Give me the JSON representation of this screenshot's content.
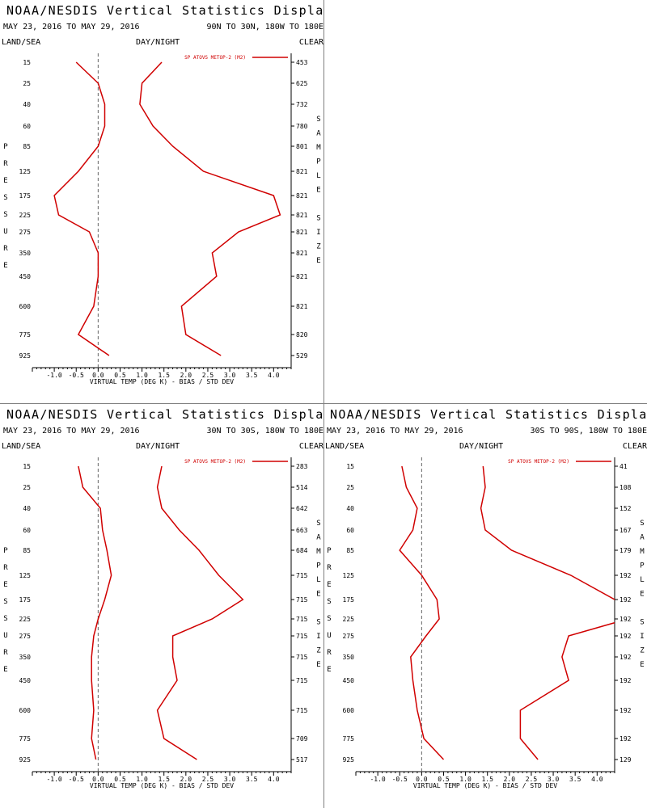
{
  "colors": {
    "series": "#d00000",
    "axis": "#000000",
    "zero_line": "#666666",
    "divider": "#7f7f7f"
  },
  "panels": [
    {
      "title": "NOAA/NESDIS Vertical Statistics Display",
      "dates": "MAY 23, 2016 TO MAY 29, 2016",
      "region": "90N TO 30N, 180W TO 180E",
      "land_sea": "LAND/SEA",
      "day_night": "DAY/NIGHT",
      "clear": "CLEAR",
      "ylabel_letters": [
        "P",
        "R",
        "E",
        "S",
        "S",
        "U",
        "R",
        "E"
      ],
      "right_label_letters": [
        "S",
        "A",
        "M",
        "P",
        "L",
        "E",
        "",
        "S",
        "I",
        "Z",
        "E"
      ]
    },
    {
      "title": "NOAA/NESDIS Vertical Statistics Display",
      "dates": "MAY 23, 2016 TO MAY 29, 2016",
      "region": "30N TO 30S, 180W TO 180E",
      "land_sea": "LAND/SEA",
      "day_night": "DAY/NIGHT",
      "clear": "CLEAR",
      "ylabel_letters": [
        "P",
        "R",
        "E",
        "S",
        "S",
        "U",
        "R",
        "E"
      ],
      "right_label_letters": [
        "S",
        "A",
        "M",
        "P",
        "L",
        "E",
        "",
        "S",
        "I",
        "Z",
        "E"
      ]
    },
    {
      "title": "NOAA/NESDIS Vertical Statistics Display",
      "dates": "MAY 23, 2016 TO MAY 29, 2016",
      "region": "30S TO 90S, 180W TO 180E",
      "land_sea": "LAND/SEA",
      "day_night": "DAY/NIGHT",
      "clear": "CLEAR",
      "ylabel_letters": [
        "P",
        "R",
        "E",
        "S",
        "S",
        "U",
        "R",
        "E"
      ],
      "right_label_letters": [
        "S",
        "A",
        "M",
        "P",
        "L",
        "E",
        "",
        "S",
        "I",
        "Z",
        "E"
      ]
    }
  ],
  "chart_data": [
    {
      "type": "line",
      "legend": "SP ATOVS METOP-2 (M2)",
      "legend_position": "top-right",
      "xlabel": "VIRTUAL TEMP (DEG K) - BIAS / STD DEV",
      "xticks": [
        "-1.0",
        "-0.5",
        "0.0",
        "0.5",
        "1.0",
        "1.5",
        "2.0",
        "2.5",
        "3.0",
        "3.5",
        "4.0"
      ],
      "xlim": [
        -1.5,
        4.4
      ],
      "pressure_levels": [
        "15",
        "25",
        "40",
        "60",
        "85",
        "125",
        "175",
        "225",
        "275",
        "350",
        "450",
        "600",
        "775",
        "925"
      ],
      "sample_size": [
        "453",
        "625",
        "732",
        "780",
        "801",
        "821",
        "821",
        "821",
        "821",
        "821",
        "821",
        "821",
        "820",
        "529"
      ],
      "series": [
        {
          "values": [
            -0.5,
            0.0,
            0.15,
            0.15,
            0.0,
            -0.45,
            -1.0,
            -0.9,
            -0.2,
            0.0,
            0.0,
            -0.1,
            -0.45,
            0.25
          ]
        },
        {
          "values": [
            1.45,
            1.0,
            0.95,
            1.25,
            1.7,
            2.4,
            4.0,
            4.15,
            3.2,
            2.6,
            2.7,
            1.9,
            2.0,
            2.8
          ]
        }
      ]
    },
    {
      "type": "line",
      "legend": "SP ATOVS METOP-2 (M2)",
      "legend_position": "top-right",
      "xlabel": "VIRTUAL TEMP (DEG K) - BIAS / STD DEV",
      "xticks": [
        "-1.0",
        "-0.5",
        "0.0",
        "0.5",
        "1.0",
        "1.5",
        "2.0",
        "2.5",
        "3.0",
        "3.5",
        "4.0"
      ],
      "xlim": [
        -1.5,
        4.4
      ],
      "pressure_levels": [
        "15",
        "25",
        "40",
        "60",
        "85",
        "125",
        "175",
        "225",
        "275",
        "350",
        "450",
        "600",
        "775",
        "925"
      ],
      "sample_size": [
        "283",
        "514",
        "642",
        "663",
        "684",
        "715",
        "715",
        "715",
        "715",
        "715",
        "715",
        "715",
        "709",
        "517"
      ],
      "series": [
        {
          "values": [
            -0.45,
            -0.35,
            0.05,
            0.1,
            0.2,
            0.3,
            0.15,
            0.0,
            -0.1,
            -0.15,
            -0.15,
            -0.1,
            -0.15,
            -0.05
          ]
        },
        {
          "values": [
            1.45,
            1.35,
            1.45,
            1.85,
            2.3,
            2.75,
            3.3,
            2.6,
            1.7,
            1.7,
            1.8,
            1.35,
            1.5,
            2.25
          ]
        }
      ]
    },
    {
      "type": "line",
      "legend": "SP ATOVS METOP-2 (M2)",
      "legend_position": "top-right",
      "xlabel": "VIRTUAL TEMP (DEG K) - BIAS / STD DEV",
      "xticks": [
        "-1.0",
        "-0.5",
        "0.0",
        "0.5",
        "1.0",
        "1.5",
        "2.0",
        "2.5",
        "3.0",
        "3.5",
        "4.0"
      ],
      "xlim": [
        -1.5,
        4.4
      ],
      "pressure_levels": [
        "15",
        "25",
        "40",
        "60",
        "85",
        "125",
        "175",
        "225",
        "275",
        "350",
        "450",
        "600",
        "775",
        "925"
      ],
      "sample_size": [
        "41",
        "108",
        "152",
        "167",
        "179",
        "192",
        "192",
        "192",
        "192",
        "192",
        "192",
        "192",
        "192",
        "129"
      ],
      "series": [
        {
          "values": [
            -0.45,
            -0.35,
            -0.1,
            -0.2,
            -0.5,
            0.0,
            0.35,
            0.4,
            0.1,
            -0.25,
            -0.2,
            -0.1,
            0.05,
            0.5
          ]
        },
        {
          "values": [
            1.4,
            1.45,
            1.35,
            1.45,
            2.05,
            3.4,
            4.4,
            4.7,
            3.35,
            3.2,
            3.35,
            2.25,
            2.25,
            2.65
          ]
        }
      ]
    }
  ]
}
